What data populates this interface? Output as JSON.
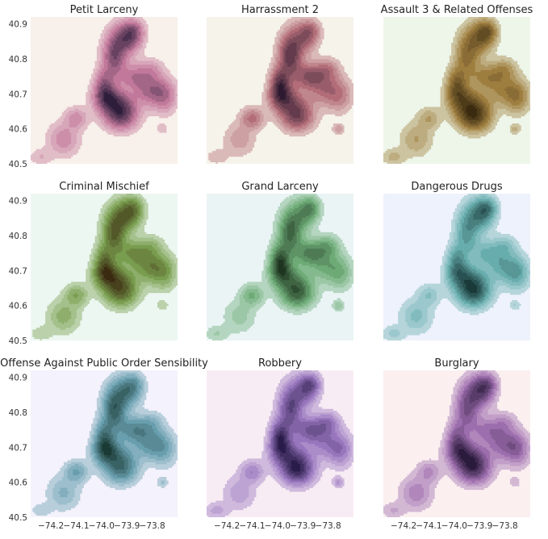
{
  "chart_data": {
    "type": "heatmap",
    "layout": {
      "rows": 3,
      "cols": 3,
      "sharex": true,
      "sharey": true,
      "grid": false
    },
    "xlim": [
      -74.28,
      -73.7
    ],
    "ylim": [
      40.5,
      40.92
    ],
    "xticks": [
      -74.2,
      -74.1,
      -74.0,
      -73.9,
      -73.8
    ],
    "xtick_labels": [
      "−74.2",
      "−74.1",
      "−74.0",
      "−73.9",
      "−73.8"
    ],
    "yticks": [
      40.5,
      40.6,
      40.7,
      40.8,
      40.9
    ],
    "ytick_labels": [
      "40.5",
      "40.6",
      "40.7",
      "40.8",
      "40.9"
    ],
    "kde_blobs": [
      {
        "x": -73.95,
        "y": 40.81,
        "sx": 0.03,
        "sy": 0.04,
        "w": 1.0
      },
      {
        "x": -73.9,
        "y": 40.86,
        "sx": 0.035,
        "sy": 0.03,
        "w": 0.85
      },
      {
        "x": -73.87,
        "y": 40.88,
        "sx": 0.025,
        "sy": 0.02,
        "w": 0.55
      },
      {
        "x": -73.99,
        "y": 40.73,
        "sx": 0.025,
        "sy": 0.03,
        "w": 0.9
      },
      {
        "x": -73.98,
        "y": 40.69,
        "sx": 0.035,
        "sy": 0.025,
        "w": 0.85
      },
      {
        "x": -73.93,
        "y": 40.66,
        "sx": 0.045,
        "sy": 0.03,
        "w": 0.95
      },
      {
        "x": -73.92,
        "y": 40.63,
        "sx": 0.04,
        "sy": 0.025,
        "w": 0.65
      },
      {
        "x": -73.87,
        "y": 40.75,
        "sx": 0.045,
        "sy": 0.025,
        "w": 0.7
      },
      {
        "x": -73.8,
        "y": 40.71,
        "sx": 0.045,
        "sy": 0.03,
        "w": 0.6
      },
      {
        "x": -73.75,
        "y": 40.69,
        "sx": 0.03,
        "sy": 0.03,
        "w": 0.4
      },
      {
        "x": -73.8,
        "y": 40.77,
        "sx": 0.03,
        "sy": 0.02,
        "w": 0.35
      },
      {
        "x": -74.1,
        "y": 40.63,
        "sx": 0.03,
        "sy": 0.02,
        "w": 0.45
      },
      {
        "x": -74.15,
        "y": 40.57,
        "sx": 0.04,
        "sy": 0.03,
        "w": 0.35
      },
      {
        "x": -74.24,
        "y": 40.52,
        "sx": 0.03,
        "sy": 0.015,
        "w": 0.2
      },
      {
        "x": -73.76,
        "y": 40.6,
        "sx": 0.015,
        "sy": 0.01,
        "w": 0.25
      }
    ],
    "panels": [
      {
        "title": "Petit Larceny",
        "cmap": {
          "low": "#f8f0ea",
          "mid": "#c47a9c",
          "high": "#2e1e3c"
        }
      },
      {
        "title": "Harrassment 2",
        "cmap": {
          "low": "#f6f3ea",
          "mid": "#b56f7a",
          "high": "#2e1a30"
        }
      },
      {
        "title": "Assault 3 & Related Offenses",
        "cmap": {
          "low": "#eef6ea",
          "mid": "#a08040",
          "high": "#3a2a10"
        }
      },
      {
        "title": "Criminal Mischief",
        "cmap": {
          "low": "#ecf7f1",
          "mid": "#7aa050",
          "high": "#3a2a10"
        }
      },
      {
        "title": "Grand Larceny",
        "cmap": {
          "low": "#eaf4f5",
          "mid": "#6fad78",
          "high": "#1e3520"
        }
      },
      {
        "title": "Dangerous Drugs",
        "cmap": {
          "low": "#eef2fc",
          "mid": "#6ab0b0",
          "high": "#1a3a3a"
        }
      },
      {
        "title": "Offense Against Public Order Sensibility",
        "cmap": {
          "low": "#f4f2fc",
          "mid": "#6aa0b0",
          "high": "#1a3a35"
        }
      },
      {
        "title": "Robbery",
        "cmap": {
          "low": "#f8ecf4",
          "mid": "#9a78c0",
          "high": "#2a1c4a"
        }
      },
      {
        "title": "Burglary",
        "cmap": {
          "low": "#fbeff0",
          "mid": "#a070b0",
          "high": "#2a1a3c"
        }
      }
    ]
  }
}
